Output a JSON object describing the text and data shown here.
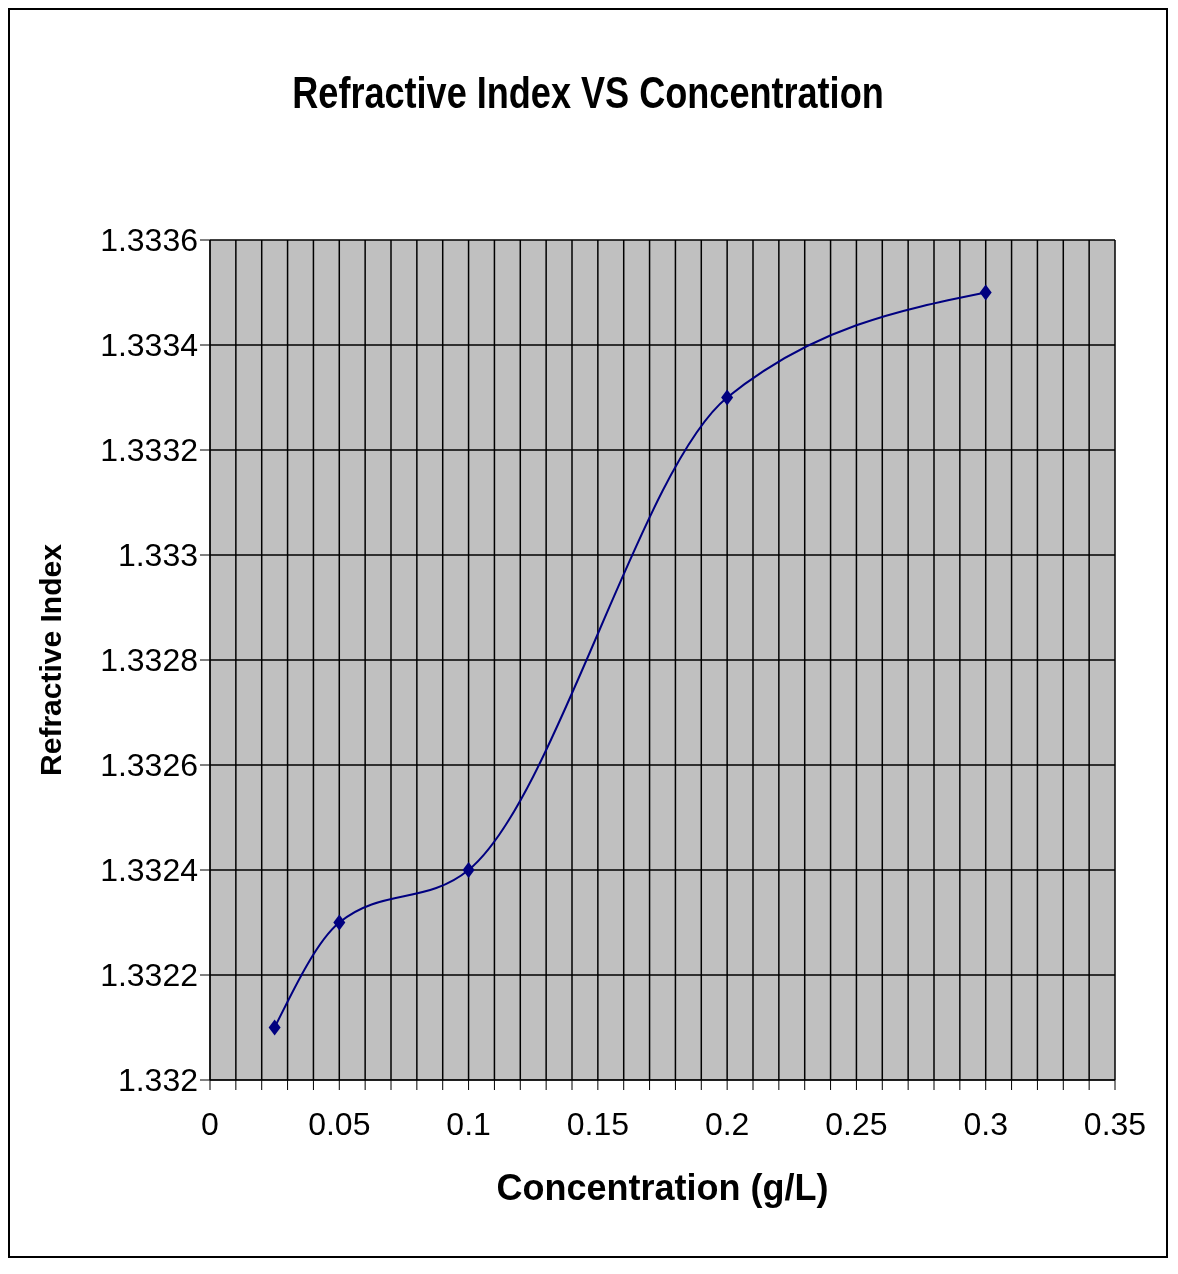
{
  "chart_data": {
    "type": "line",
    "title": "Refractive Index VS Concentration",
    "xlabel": "Concentration (g/L)",
    "ylabel": "Refractive Index",
    "x": [
      0.025,
      0.05,
      0.1,
      0.2,
      0.3
    ],
    "series": [
      {
        "color": "#000080",
        "values": [
          1.3321,
          1.3323,
          1.3324,
          1.3333,
          1.3335
        ]
      }
    ],
    "xlim": [
      0,
      0.35
    ],
    "xticks": [
      0,
      {
        "value": 0.01,
        "label": null
      },
      {
        "value": 0.02,
        "label": null
      },
      {
        "value": 0.03,
        "label": null
      },
      {
        "value": 0.04,
        "label": null
      },
      0.05,
      {
        "value": 0.06,
        "label": null
      },
      {
        "value": 0.07,
        "label": null
      },
      {
        "value": 0.08,
        "label": null
      },
      {
        "value": 0.09,
        "label": null
      },
      0.1,
      {
        "value": 0.11,
        "label": null
      },
      {
        "value": 0.12,
        "label": null
      },
      {
        "value": 0.13,
        "label": null
      },
      {
        "value": 0.14,
        "label": null
      },
      0.15,
      {
        "value": 0.16,
        "label": null
      },
      {
        "value": 0.17,
        "label": null
      },
      {
        "value": 0.18,
        "label": null
      },
      {
        "value": 0.19,
        "label": null
      },
      0.2,
      {
        "value": 0.21,
        "label": null
      },
      {
        "value": 0.22,
        "label": null
      },
      {
        "value": 0.23,
        "label": null
      },
      {
        "value": 0.24,
        "label": null
      },
      0.25,
      {
        "value": 0.26,
        "label": null
      },
      {
        "value": 0.27,
        "label": null
      },
      {
        "value": 0.28,
        "label": null
      },
      {
        "value": 0.29,
        "label": null
      },
      0.3,
      {
        "value": 0.31,
        "label": null
      },
      {
        "value": 0.32,
        "label": null
      },
      {
        "value": 0.33,
        "label": null
      },
      {
        "value": 0.34,
        "label": null
      },
      0.35
    ],
    "ylim": [
      1.332,
      1.3336
    ],
    "yticks": [
      1.332,
      1.3322,
      1.3324,
      1.3326,
      1.3328,
      1.333,
      1.3332,
      1.3334,
      1.3336
    ],
    "grid": true,
    "marker": "diamond",
    "line_style": "solid"
  }
}
